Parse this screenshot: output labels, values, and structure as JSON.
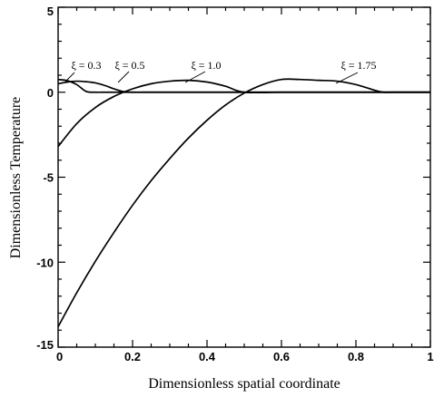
{
  "chart_data": {
    "type": "line",
    "title": "",
    "xlabel": "Dimensionless spatial coordinate",
    "ylabel": "Dimensionless Temperature",
    "xlim": [
      0,
      1
    ],
    "ylim": [
      -15,
      5
    ],
    "xticks": [
      0,
      0.2,
      0.4,
      0.6,
      0.8,
      1
    ],
    "xtick_labels": [
      "0",
      "0.2",
      "0.4",
      "0.6",
      "0.8",
      "1"
    ],
    "yticks": [
      -15,
      -10,
      -5,
      0,
      5
    ],
    "ytick_labels": [
      "-15",
      "-10",
      "-5",
      "0",
      "5"
    ],
    "grid": false,
    "series": [
      {
        "label": "ξ = 0.3",
        "x": [
          0,
          0.025,
          0.05,
          0.075,
          0.1,
          0.125,
          0.15,
          0.2,
          0.3,
          0.4,
          0.5,
          0.6,
          0.7,
          0.8,
          0.9,
          1.0
        ],
        "y": [
          0.75,
          0.68,
          0.45,
          0.05,
          0,
          0,
          0,
          0,
          0,
          0,
          0,
          0,
          0,
          0,
          0,
          0
        ]
      },
      {
        "label": "ξ = 0.5",
        "x": [
          0,
          0.025,
          0.05,
          0.075,
          0.1,
          0.125,
          0.15,
          0.175,
          0.2,
          0.25,
          0.3,
          0.4,
          0.5,
          0.6,
          0.7,
          0.8,
          0.9,
          1.0
        ],
        "y": [
          0.5,
          0.6,
          0.65,
          0.62,
          0.55,
          0.4,
          0.2,
          0.04,
          0,
          0,
          0,
          0,
          0,
          0,
          0,
          0,
          0,
          0
        ]
      },
      {
        "label": "ξ = 1.0",
        "x": [
          0,
          0.05,
          0.1,
          0.15,
          0.2,
          0.25,
          0.3,
          0.35,
          0.4,
          0.45,
          0.5,
          0.6,
          0.7,
          0.8,
          0.9,
          1.0
        ],
        "y": [
          -3.2,
          -1.85,
          -0.9,
          -0.25,
          0.2,
          0.5,
          0.65,
          0.7,
          0.6,
          0.35,
          0,
          0,
          0,
          0,
          0,
          0
        ]
      },
      {
        "label": "ξ = 1.75",
        "x": [
          0,
          0.05,
          0.1,
          0.15,
          0.2,
          0.25,
          0.3,
          0.35,
          0.4,
          0.45,
          0.5,
          0.55,
          0.6,
          0.65,
          0.7,
          0.75,
          0.8,
          0.85,
          0.875,
          0.9,
          1.0
        ],
        "y": [
          -13.8,
          -11.8,
          -9.95,
          -8.25,
          -6.65,
          -5.2,
          -3.9,
          -2.7,
          -1.65,
          -0.75,
          -0.05,
          0.45,
          0.75,
          0.75,
          0.7,
          0.65,
          0.45,
          0.12,
          0,
          0,
          0
        ]
      }
    ],
    "annotations": [
      {
        "text": "ξ = 0.3",
        "series": 0
      },
      {
        "text": "ξ = 0.5",
        "series": 1
      },
      {
        "text": "ξ = 1.0",
        "series": 2
      },
      {
        "text": "ξ = 1.75",
        "series": 3
      }
    ]
  }
}
